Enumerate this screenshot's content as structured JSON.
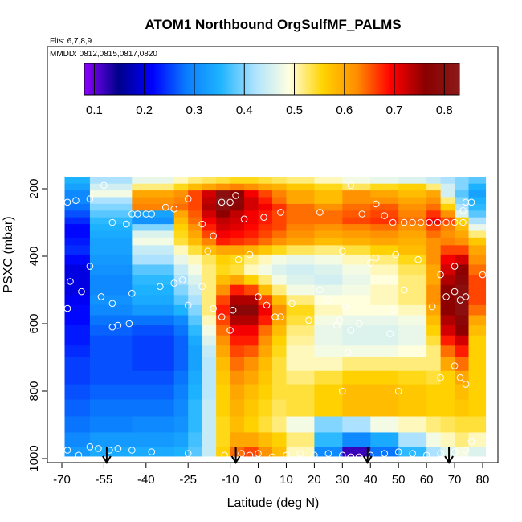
{
  "chart_data": {
    "type": "heatmap",
    "title": "ATOM1 Northbound OrgSulfMF_PALMS",
    "flights_label": "Flts: 6,7,8,9",
    "dates_label": "MMDD: 0812,0815,0817,0820",
    "xlabel": "Latitude (deg N)",
    "ylabel": "PSXC (mbar)",
    "xlim": [
      -70,
      85
    ],
    "ylim": [
      1020,
      0
    ],
    "x_ticks": [
      -70,
      -55,
      -40,
      -25,
      -10,
      0,
      10,
      20,
      30,
      40,
      50,
      60,
      70,
      80
    ],
    "x_tick_labels": [
      "-70",
      "-55",
      "-40",
      "-25",
      "-10",
      "0",
      "10",
      "20",
      "30",
      "40",
      "50",
      "60",
      "70",
      "80"
    ],
    "y_ticks": [
      200,
      400,
      600,
      800,
      1000
    ],
    "y_tick_labels": [
      "200",
      "400",
      "600",
      "800",
      "1000"
    ],
    "colorbar": {
      "min": 0.08,
      "max": 0.83,
      "ticks": [
        0.1,
        0.2,
        0.3,
        0.4,
        0.5,
        0.6,
        0.7,
        0.8
      ],
      "tick_labels": [
        "0.1",
        "0.2",
        "0.3",
        "0.4",
        "0.5",
        "0.6",
        "0.7",
        "0.8"
      ],
      "colors": [
        "#8b00ff",
        "#00008b",
        "#0000ff",
        "#0a7dff",
        "#1eb4ff",
        "#aee3ff",
        "#ffffe0",
        "#ffd400",
        "#ff8c00",
        "#ff0000",
        "#8b0000",
        "#8b1a1a"
      ]
    },
    "lat_edges": [
      -69,
      -60,
      -45,
      -30,
      -25,
      -20,
      -15,
      -10,
      -5,
      0,
      5,
      10,
      20,
      30,
      40,
      50,
      60,
      65,
      70,
      75,
      81
    ],
    "pressure_levels": [
      175,
      195,
      215,
      235,
      255,
      275,
      295,
      315,
      335,
      355,
      380,
      410,
      440,
      470,
      500,
      530,
      560,
      590,
      620,
      650,
      680,
      720,
      760,
      800,
      850,
      900,
      945,
      985,
      1000
    ],
    "values": [
      [
        0.35,
        0.42,
        0.47,
        0.5,
        0.52,
        0.53,
        0.54,
        0.55,
        0.55,
        0.54,
        0.53,
        0.52,
        0.5,
        0.48,
        0.47,
        0.46,
        0.44,
        0.42,
        0.4,
        0.38
      ],
      [
        0.33,
        0.45,
        0.52,
        0.55,
        0.58,
        0.6,
        0.62,
        0.63,
        0.62,
        0.6,
        0.59,
        0.57,
        0.55,
        0.53,
        0.55,
        0.56,
        0.52,
        0.45,
        0.4,
        0.35
      ],
      [
        0.3,
        0.48,
        0.6,
        0.62,
        0.66,
        0.72,
        0.8,
        0.76,
        0.7,
        0.66,
        0.63,
        0.6,
        0.58,
        0.62,
        0.6,
        0.58,
        0.6,
        0.45,
        0.38,
        0.33
      ],
      [
        0.3,
        0.42,
        0.62,
        0.63,
        0.66,
        0.73,
        0.82,
        0.78,
        0.72,
        0.68,
        0.64,
        0.6,
        0.58,
        0.62,
        0.62,
        0.6,
        0.62,
        0.52,
        0.4,
        0.35
      ],
      [
        0.28,
        0.4,
        0.63,
        0.64,
        0.66,
        0.74,
        0.8,
        0.77,
        0.72,
        0.7,
        0.67,
        0.64,
        0.62,
        0.64,
        0.65,
        0.62,
        0.64,
        0.56,
        0.42,
        0.36
      ],
      [
        0.26,
        0.38,
        0.33,
        0.6,
        0.65,
        0.72,
        0.76,
        0.73,
        0.7,
        0.68,
        0.66,
        0.64,
        0.64,
        0.65,
        0.66,
        0.63,
        0.67,
        0.62,
        0.46,
        0.38
      ],
      [
        0.24,
        0.36,
        0.31,
        0.58,
        0.64,
        0.7,
        0.73,
        0.72,
        0.7,
        0.68,
        0.66,
        0.64,
        0.64,
        0.66,
        0.67,
        0.64,
        0.7,
        0.66,
        0.56,
        0.42
      ],
      [
        0.22,
        0.35,
        0.4,
        0.56,
        0.62,
        0.68,
        0.72,
        0.71,
        0.69,
        0.67,
        0.66,
        0.63,
        0.62,
        0.63,
        0.64,
        0.62,
        0.66,
        0.63,
        0.58,
        0.47
      ],
      [
        0.22,
        0.34,
        0.46,
        0.55,
        0.6,
        0.66,
        0.7,
        0.69,
        0.68,
        0.66,
        0.64,
        0.62,
        0.6,
        0.61,
        0.62,
        0.6,
        0.64,
        0.62,
        0.6,
        0.52
      ],
      [
        0.23,
        0.33,
        0.48,
        0.54,
        0.58,
        0.63,
        0.68,
        0.67,
        0.66,
        0.64,
        0.62,
        0.6,
        0.58,
        0.59,
        0.6,
        0.59,
        0.62,
        0.63,
        0.62,
        0.57
      ],
      [
        0.24,
        0.33,
        0.44,
        0.5,
        0.54,
        0.58,
        0.6,
        0.6,
        0.59,
        0.57,
        0.55,
        0.53,
        0.52,
        0.54,
        0.56,
        0.58,
        0.62,
        0.66,
        0.66,
        0.6
      ],
      [
        0.22,
        0.32,
        0.42,
        0.47,
        0.5,
        0.53,
        0.56,
        0.55,
        0.52,
        0.5,
        0.48,
        0.47,
        0.48,
        0.5,
        0.52,
        0.55,
        0.62,
        0.7,
        0.72,
        0.62
      ],
      [
        0.2,
        0.31,
        0.38,
        0.44,
        0.48,
        0.52,
        0.55,
        0.54,
        0.5,
        0.48,
        0.46,
        0.45,
        0.46,
        0.48,
        0.5,
        0.53,
        0.6,
        0.72,
        0.76,
        0.64
      ],
      [
        0.2,
        0.3,
        0.36,
        0.42,
        0.46,
        0.52,
        0.58,
        0.6,
        0.56,
        0.52,
        0.48,
        0.46,
        0.45,
        0.47,
        0.49,
        0.52,
        0.6,
        0.74,
        0.78,
        0.66
      ],
      [
        0.2,
        0.3,
        0.35,
        0.4,
        0.44,
        0.52,
        0.62,
        0.68,
        0.66,
        0.58,
        0.52,
        0.48,
        0.47,
        0.48,
        0.5,
        0.52,
        0.62,
        0.76,
        0.8,
        0.66
      ],
      [
        0.21,
        0.31,
        0.34,
        0.38,
        0.42,
        0.52,
        0.66,
        0.74,
        0.74,
        0.66,
        0.58,
        0.52,
        0.49,
        0.49,
        0.5,
        0.52,
        0.62,
        0.76,
        0.8,
        0.66
      ],
      [
        0.22,
        0.3,
        0.32,
        0.35,
        0.4,
        0.52,
        0.68,
        0.78,
        0.78,
        0.7,
        0.62,
        0.55,
        0.5,
        0.49,
        0.49,
        0.5,
        0.6,
        0.76,
        0.8,
        0.64
      ],
      [
        0.22,
        0.28,
        0.28,
        0.3,
        0.38,
        0.5,
        0.66,
        0.74,
        0.74,
        0.68,
        0.6,
        0.54,
        0.48,
        0.47,
        0.47,
        0.48,
        0.58,
        0.74,
        0.78,
        0.6
      ],
      [
        0.23,
        0.27,
        0.26,
        0.28,
        0.36,
        0.48,
        0.64,
        0.7,
        0.7,
        0.64,
        0.58,
        0.52,
        0.47,
        0.46,
        0.46,
        0.47,
        0.56,
        0.72,
        0.76,
        0.58
      ],
      [
        0.23,
        0.26,
        0.25,
        0.27,
        0.34,
        0.46,
        0.62,
        0.68,
        0.68,
        0.62,
        0.56,
        0.51,
        0.47,
        0.46,
        0.46,
        0.47,
        0.54,
        0.68,
        0.72,
        0.56
      ],
      [
        0.24,
        0.26,
        0.25,
        0.27,
        0.33,
        0.44,
        0.6,
        0.66,
        0.65,
        0.6,
        0.55,
        0.5,
        0.48,
        0.48,
        0.48,
        0.49,
        0.52,
        0.64,
        0.68,
        0.56
      ],
      [
        0.25,
        0.26,
        0.25,
        0.27,
        0.33,
        0.43,
        0.58,
        0.64,
        0.62,
        0.58,
        0.54,
        0.5,
        0.5,
        0.52,
        0.52,
        0.52,
        0.52,
        0.6,
        0.64,
        0.56
      ],
      [
        0.25,
        0.26,
        0.26,
        0.28,
        0.34,
        0.43,
        0.57,
        0.62,
        0.6,
        0.57,
        0.54,
        0.52,
        0.54,
        0.56,
        0.56,
        0.55,
        0.54,
        0.56,
        0.6,
        0.56
      ],
      [
        0.26,
        0.27,
        0.27,
        0.29,
        0.35,
        0.43,
        0.56,
        0.6,
        0.58,
        0.56,
        0.54,
        0.54,
        0.56,
        0.58,
        0.58,
        0.57,
        0.56,
        0.56,
        0.58,
        0.56
      ],
      [
        0.27,
        0.28,
        0.28,
        0.3,
        0.36,
        0.44,
        0.56,
        0.59,
        0.57,
        0.55,
        0.53,
        0.54,
        0.56,
        0.58,
        0.58,
        0.57,
        0.56,
        0.56,
        0.57,
        0.56
      ],
      [
        0.28,
        0.29,
        0.3,
        0.31,
        0.36,
        0.44,
        0.55,
        0.58,
        0.56,
        0.54,
        0.52,
        0.48,
        0.4,
        0.42,
        0.48,
        0.5,
        0.52,
        0.53,
        0.54,
        0.54
      ],
      [
        0.3,
        0.32,
        0.32,
        0.33,
        0.37,
        0.44,
        0.55,
        0.6,
        0.6,
        0.58,
        0.56,
        0.52,
        0.36,
        0.3,
        0.34,
        0.42,
        0.48,
        0.5,
        0.52,
        0.5
      ],
      [
        0.32,
        0.34,
        0.34,
        0.35,
        0.38,
        0.44,
        0.56,
        0.64,
        0.66,
        0.62,
        0.58,
        0.5,
        0.3,
        0.12,
        0.28,
        0.36,
        0.42,
        0.46,
        0.48,
        0.46
      ]
    ],
    "sample_points": [
      {
        "x": -68,
        "y": 240
      },
      {
        "x": -65,
        "y": 235
      },
      {
        "x": -60,
        "y": 230
      },
      {
        "x": -55,
        "y": 190
      },
      {
        "x": -52,
        "y": 300
      },
      {
        "x": -47,
        "y": 305
      },
      {
        "x": -45,
        "y": 275
      },
      {
        "x": -43,
        "y": 275
      },
      {
        "x": -40,
        "y": 275
      },
      {
        "x": -38,
        "y": 275
      },
      {
        "x": -33,
        "y": 255
      },
      {
        "x": -30,
        "y": 260
      },
      {
        "x": -25,
        "y": 230
      },
      {
        "x": -20,
        "y": 305
      },
      {
        "x": -18,
        "y": 385
      },
      {
        "x": -16,
        "y": 340
      },
      {
        "x": -13,
        "y": 240
      },
      {
        "x": -10,
        "y": 240
      },
      {
        "x": -8,
        "y": 220
      },
      {
        "x": -7,
        "y": 410
      },
      {
        "x": -5,
        "y": 290
      },
      {
        "x": -3,
        "y": 395
      },
      {
        "x": 2,
        "y": 285
      },
      {
        "x": 8,
        "y": 270
      },
      {
        "x": 22,
        "y": 270
      },
      {
        "x": 33,
        "y": 190
      },
      {
        "x": 37,
        "y": 275
      },
      {
        "x": 42,
        "y": 245
      },
      {
        "x": 45,
        "y": 280
      },
      {
        "x": 48,
        "y": 300
      },
      {
        "x": 52,
        "y": 300
      },
      {
        "x": 55,
        "y": 300
      },
      {
        "x": 58,
        "y": 300
      },
      {
        "x": 61,
        "y": 300
      },
      {
        "x": 64,
        "y": 300
      },
      {
        "x": 67,
        "y": 300
      },
      {
        "x": 70,
        "y": 300
      },
      {
        "x": 73,
        "y": 300
      },
      {
        "x": 74,
        "y": 240
      },
      {
        "x": 76,
        "y": 240
      },
      {
        "x": 73,
        "y": 265
      },
      {
        "x": 30,
        "y": 385
      },
      {
        "x": 40,
        "y": 420
      },
      {
        "x": 42,
        "y": 405
      },
      {
        "x": 49,
        "y": 395
      },
      {
        "x": 57,
        "y": 410
      },
      {
        "x": 65,
        "y": 455
      },
      {
        "x": 70,
        "y": 430
      },
      {
        "x": 80,
        "y": 455
      },
      {
        "x": -67,
        "y": 475
      },
      {
        "x": -60,
        "y": 430
      },
      {
        "x": -63,
        "y": 505
      },
      {
        "x": -56,
        "y": 520
      },
      {
        "x": -52,
        "y": 540
      },
      {
        "x": -45,
        "y": 510
      },
      {
        "x": -35,
        "y": 490
      },
      {
        "x": -30,
        "y": 480
      },
      {
        "x": -27,
        "y": 470
      },
      {
        "x": -25,
        "y": 545
      },
      {
        "x": -20,
        "y": 490
      },
      {
        "x": -16,
        "y": 555
      },
      {
        "x": -13,
        "y": 580
      },
      {
        "x": -9,
        "y": 560
      },
      {
        "x": 0,
        "y": 520
      },
      {
        "x": 3,
        "y": 545
      },
      {
        "x": 8,
        "y": 580
      },
      {
        "x": 12,
        "y": 540
      },
      {
        "x": 18,
        "y": 590
      },
      {
        "x": 22,
        "y": 500
      },
      {
        "x": 25,
        "y": 530
      },
      {
        "x": 29,
        "y": 590
      },
      {
        "x": 31,
        "y": 550
      },
      {
        "x": 33,
        "y": 620
      },
      {
        "x": 36,
        "y": 600
      },
      {
        "x": 48,
        "y": 560
      },
      {
        "x": 52,
        "y": 500
      },
      {
        "x": 62,
        "y": 550
      },
      {
        "x": 67,
        "y": 520
      },
      {
        "x": 70,
        "y": 505
      },
      {
        "x": 72,
        "y": 530
      },
      {
        "x": 74,
        "y": 520
      },
      {
        "x": -68,
        "y": 555
      },
      {
        "x": -52,
        "y": 610
      },
      {
        "x": -50,
        "y": 605
      },
      {
        "x": -46,
        "y": 600
      },
      {
        "x": -10,
        "y": 620
      },
      {
        "x": 6,
        "y": 580
      },
      {
        "x": 28,
        "y": 605
      },
      {
        "x": 32,
        "y": 685
      },
      {
        "x": 47,
        "y": 630
      },
      {
        "x": 65,
        "y": 760
      },
      {
        "x": 70,
        "y": 725
      },
      {
        "x": 72,
        "y": 760
      },
      {
        "x": 74,
        "y": 780
      },
      {
        "x": 30,
        "y": 800
      },
      {
        "x": 50,
        "y": 800
      },
      {
        "x": 76,
        "y": 950
      },
      {
        "x": -68,
        "y": 975
      },
      {
        "x": -64,
        "y": 990
      },
      {
        "x": -60,
        "y": 965
      },
      {
        "x": -57,
        "y": 970
      },
      {
        "x": -53,
        "y": 975
      },
      {
        "x": -50,
        "y": 970
      },
      {
        "x": -45,
        "y": 975
      },
      {
        "x": -38,
        "y": 980
      },
      {
        "x": -25,
        "y": 985
      },
      {
        "x": -12,
        "y": 990
      },
      {
        "x": -6,
        "y": 985
      },
      {
        "x": -3,
        "y": 990
      },
      {
        "x": 0,
        "y": 985
      },
      {
        "x": 5,
        "y": 995
      },
      {
        "x": 10,
        "y": 990
      },
      {
        "x": 15,
        "y": 985
      },
      {
        "x": 20,
        "y": 990
      },
      {
        "x": 25,
        "y": 985
      },
      {
        "x": 30,
        "y": 990
      },
      {
        "x": 33,
        "y": 995
      },
      {
        "x": 36,
        "y": 995
      },
      {
        "x": 40,
        "y": 990
      },
      {
        "x": 45,
        "y": 985
      },
      {
        "x": 50,
        "y": 980
      },
      {
        "x": 55,
        "y": 985
      },
      {
        "x": 60,
        "y": 990
      },
      {
        "x": 65,
        "y": 985
      },
      {
        "x": 70,
        "y": 980
      },
      {
        "x": 74,
        "y": 975
      }
    ],
    "arrows": [
      -54,
      -8,
      39,
      68
    ],
    "grid": false
  }
}
